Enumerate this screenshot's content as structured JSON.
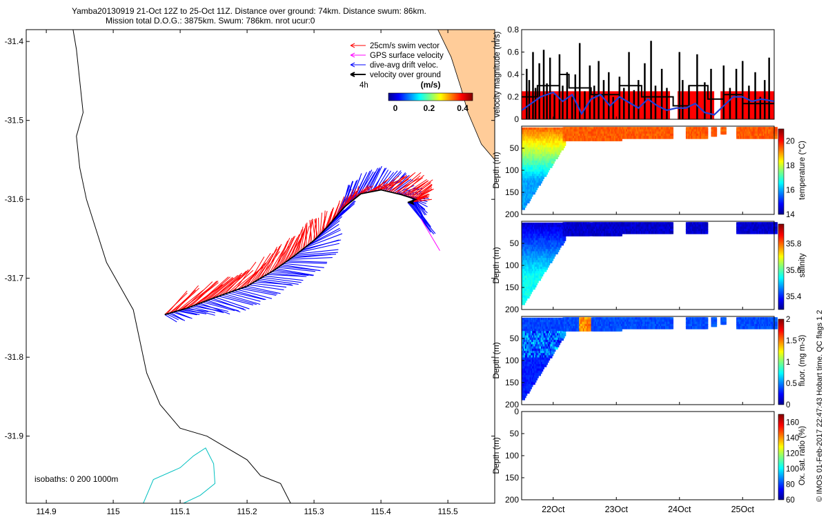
{
  "title": {
    "line1": "Yamba20130919 21-Oct 12Z to 25-Oct 11Z. Distance over ground: 74km. Distance swum: 86km.",
    "line2": "Mission total D.O.G.: 3875km. Swum: 786km. nrot ucur:0"
  },
  "credit": "© IMOS 01-Feb-2017 22:47:43 Hobart time. QC flags 1  2",
  "colors": {
    "swim": "#ff0000",
    "gps": "#ff00ff",
    "drift": "#0000ff",
    "ground": "#000000",
    "coast": "#000000",
    "isobath": "#00c0c0",
    "land": "#ffcc99",
    "vbar": "#ff0000",
    "vline": "#1f3fd8"
  },
  "chart_data": [
    {
      "type": "map",
      "name": "glider-track-map",
      "xlim": [
        114.87,
        115.57
      ],
      "ylim": [
        -31.985,
        -31.385
      ],
      "xticks": [
        "114.9",
        "115",
        "115.1",
        "115.2",
        "115.3",
        "115.4",
        "115.5"
      ],
      "yticks": [
        "-31.4",
        "-31.5",
        "-31.6",
        "-31.7",
        "-31.8",
        "-31.9"
      ],
      "legend": {
        "items": [
          "25cm/s swim vector",
          "GPS surface velocity",
          "dive-avg drift veloc.",
          "velocity over ground"
        ],
        "time_marker": "4h"
      },
      "colorbar": {
        "label": "(m/s)",
        "ticks": [
          "0",
          "0.2",
          "0.4"
        ],
        "range": [
          0,
          0.5
        ]
      },
      "isobaths_label": "isobaths: 0   200  1000m",
      "coastline": [
        [
          114.94,
          -31.385
        ],
        [
          114.945,
          -31.41
        ],
        [
          114.95,
          -31.45
        ],
        [
          114.955,
          -31.49
        ],
        [
          114.945,
          -31.52
        ],
        [
          114.95,
          -31.56
        ],
        [
          114.96,
          -31.6
        ],
        [
          114.975,
          -31.64
        ],
        [
          114.99,
          -31.68
        ],
        [
          115.01,
          -31.71
        ],
        [
          115.03,
          -31.74
        ],
        [
          115.04,
          -31.78
        ],
        [
          115.05,
          -31.82
        ],
        [
          115.07,
          -31.86
        ],
        [
          115.1,
          -31.89
        ],
        [
          115.14,
          -31.9
        ],
        [
          115.2,
          -31.93
        ],
        [
          115.22,
          -31.95
        ],
        [
          115.25,
          -31.96
        ],
        [
          115.265,
          -31.985
        ]
      ],
      "isobath_0": [
        [
          115.045,
          -31.985
        ],
        [
          115.06,
          -31.955
        ],
        [
          115.1,
          -31.94
        ],
        [
          115.12,
          -31.925
        ],
        [
          115.138,
          -31.915
        ],
        [
          115.15,
          -31.935
        ],
        [
          115.152,
          -31.96
        ],
        [
          115.13,
          -31.975
        ],
        [
          115.105,
          -31.985
        ]
      ],
      "land_polygon": [
        [
          115.485,
          -31.385
        ],
        [
          115.57,
          -31.385
        ],
        [
          115.57,
          -31.55
        ],
        [
          115.55,
          -31.53
        ],
        [
          115.53,
          -31.49
        ],
        [
          115.52,
          -31.46
        ],
        [
          115.505,
          -31.42
        ]
      ],
      "track": [
        [
          115.077,
          -31.746
        ],
        [
          115.11,
          -31.738
        ],
        [
          115.15,
          -31.725
        ],
        [
          115.2,
          -31.71
        ],
        [
          115.24,
          -31.69
        ],
        [
          115.27,
          -31.672
        ],
        [
          115.3,
          -31.652
        ],
        [
          115.32,
          -31.635
        ],
        [
          115.345,
          -31.61
        ],
        [
          115.37,
          -31.593
        ],
        [
          115.4,
          -31.588
        ],
        [
          115.43,
          -31.594
        ],
        [
          115.452,
          -31.6
        ],
        [
          115.44,
          -31.604
        ]
      ],
      "drift_endpoints": [
        [
          115.095,
          -31.755
        ],
        [
          115.14,
          -31.745
        ],
        [
          115.19,
          -31.742
        ],
        [
          115.23,
          -31.728
        ],
        [
          115.275,
          -31.705
        ],
        [
          115.31,
          -31.69
        ],
        [
          115.34,
          -31.66
        ],
        [
          115.34,
          -31.62
        ],
        [
          115.365,
          -31.6
        ],
        [
          115.35,
          -31.58
        ],
        [
          115.38,
          -31.565
        ],
        [
          115.405,
          -31.56
        ],
        [
          115.44,
          -31.568
        ],
        [
          115.47,
          -31.6
        ],
        [
          115.465,
          -31.625
        ],
        [
          115.48,
          -31.645
        ]
      ],
      "swim_endpoints": [
        [
          115.11,
          -31.718
        ],
        [
          115.16,
          -31.705
        ],
        [
          115.2,
          -31.695
        ],
        [
          115.24,
          -31.668
        ],
        [
          115.275,
          -31.648
        ],
        [
          115.29,
          -31.632
        ],
        [
          115.31,
          -31.62
        ],
        [
          115.35,
          -31.598
        ],
        [
          115.37,
          -31.588
        ],
        [
          115.42,
          -31.575
        ],
        [
          115.46,
          -31.568
        ],
        [
          115.48,
          -31.585
        ],
        [
          115.47,
          -31.6
        ]
      ],
      "gps_tip": [
        115.488,
        -31.665
      ]
    },
    {
      "type": "bar",
      "name": "velocity-magnitude",
      "ylabel": "velocity magnitude (m/s)",
      "ylim": [
        0,
        0.8
      ],
      "yticks": [
        "0",
        "0.2",
        "0.4",
        "0.6",
        "0.8"
      ],
      "xlim": [
        21.5,
        25.5
      ],
      "segments": [
        [
          21.5,
          23.85
        ],
        [
          23.97,
          24.55
        ],
        [
          24.65,
          25.5
        ]
      ],
      "bar_height": 0.25,
      "spike_times": [
        21.58,
        21.62,
        21.68,
        21.72,
        21.78,
        21.85,
        21.9,
        21.95,
        22.02,
        22.1,
        22.15,
        22.22,
        22.3,
        22.35,
        22.42,
        22.5,
        22.58,
        22.65,
        22.72,
        22.8,
        22.88,
        22.95,
        23.05,
        23.12,
        23.2,
        23.28,
        23.35,
        23.45,
        23.55,
        23.62,
        23.72,
        23.8,
        24.0,
        24.05,
        24.15,
        24.28,
        24.4,
        24.5,
        24.7,
        24.8,
        24.9,
        25.0,
        25.1,
        25.2,
        25.28,
        25.35,
        25.42
      ],
      "spike_values": [
        0.45,
        0.35,
        0.6,
        0.28,
        0.5,
        0.62,
        0.32,
        0.55,
        0.22,
        0.58,
        0.3,
        0.42,
        0.2,
        0.4,
        0.68,
        0.25,
        0.48,
        0.3,
        0.52,
        0.35,
        0.42,
        0.2,
        0.38,
        0.28,
        0.6,
        0.26,
        0.35,
        0.5,
        0.7,
        0.3,
        0.45,
        0.28,
        0.6,
        0.35,
        0.3,
        0.58,
        0.33,
        0.45,
        0.48,
        0.28,
        0.45,
        0.52,
        0.3,
        0.42,
        0.2,
        0.35,
        0.55
      ],
      "ground_step_x": [
        21.5,
        21.75,
        21.75,
        22.1,
        22.1,
        22.25,
        22.25,
        22.6,
        22.6,
        23.05,
        23.05,
        23.4,
        23.4,
        23.9,
        23.9,
        24.15,
        24.15,
        24.45,
        24.45,
        24.7,
        24.7,
        25.0,
        25.0,
        25.5
      ],
      "ground_step_y": [
        0.2,
        0.2,
        0.3,
        0.3,
        0.4,
        0.4,
        0.28,
        0.28,
        0.22,
        0.22,
        0.3,
        0.3,
        0.2,
        0.2,
        0.12,
        0.12,
        0.3,
        0.3,
        0.18,
        0.18,
        0.22,
        0.22,
        0.14,
        0.14
      ],
      "mean_x": [
        21.5,
        21.65,
        21.8,
        22.0,
        22.15,
        22.3,
        22.45,
        22.6,
        22.75,
        22.9,
        23.05,
        23.2,
        23.35,
        23.5,
        23.65,
        23.8,
        23.95,
        24.1,
        24.25,
        24.4,
        24.55,
        24.7,
        24.85,
        25.0,
        25.15,
        25.3,
        25.5
      ],
      "mean_y": [
        0.08,
        0.14,
        0.2,
        0.24,
        0.16,
        0.22,
        0.05,
        0.18,
        0.22,
        0.12,
        0.2,
        0.15,
        0.1,
        0.18,
        0.12,
        0.08,
        0.1,
        0.1,
        0.14,
        0.06,
        0.04,
        0.12,
        0.2,
        0.2,
        0.16,
        0.18,
        0.16
      ]
    },
    {
      "type": "heatmap",
      "name": "temperature-section",
      "ylabel": "Depth (m)",
      "ylim": [
        0,
        200
      ],
      "yticks": [
        "50",
        "100",
        "150",
        "200"
      ],
      "colorbar": {
        "label": "temperature (°C)",
        "range": [
          14,
          21
        ],
        "ticks": [
          "14",
          "16",
          "18",
          "20"
        ]
      },
      "xlim": [
        21.5,
        25.5
      ],
      "deep_section": {
        "x": [
          21.5,
          22.15
        ],
        "depth_start": 185,
        "depth_end": 40
      },
      "shallow_blocks": [
        [
          22.15,
          22.55,
          30
        ],
        [
          22.6,
          23.05,
          28
        ],
        [
          23.05,
          23.85,
          26
        ],
        [
          24.1,
          24.4,
          24
        ],
        [
          24.5,
          24.55,
          20
        ],
        [
          24.65,
          24.7,
          15
        ],
        [
          24.9,
          25.5,
          25
        ]
      ],
      "surface_value": 19.5,
      "deep_value": 16.0
    },
    {
      "type": "heatmap",
      "name": "salinity-section",
      "ylabel": "Depth (m)",
      "ylim": [
        0,
        200
      ],
      "yticks": [
        "50",
        "100",
        "150",
        "200"
      ],
      "colorbar": {
        "label": "salinity",
        "range": [
          35.3,
          35.95
        ],
        "ticks": [
          "35.4",
          "35.6",
          "35.8"
        ]
      },
      "xlim": [
        21.5,
        25.5
      ],
      "deep_section": {
        "x": [
          21.5,
          22.15
        ],
        "depth_start": 185,
        "depth_end": 40
      },
      "shallow_blocks": [
        [
          22.15,
          22.55,
          30
        ],
        [
          22.6,
          23.05,
          28
        ],
        [
          23.05,
          23.85,
          26
        ],
        [
          24.1,
          24.4,
          24
        ],
        [
          24.9,
          25.5,
          25
        ]
      ],
      "surface_value": 35.35,
      "deep_value": 35.55
    },
    {
      "type": "heatmap",
      "name": "fluorescence-section",
      "ylabel": "Depth (m)",
      "ylim": [
        0,
        200
      ],
      "yticks": [
        "50",
        "100",
        "150",
        "200"
      ],
      "colorbar": {
        "label": "fluor. (mg m-3)",
        "range": [
          0,
          2
        ],
        "ticks": [
          "0",
          "0.5",
          "1",
          "1.5",
          "2"
        ]
      },
      "xlim": [
        21.5,
        25.5
      ],
      "deep_section": {
        "x": [
          21.5,
          22.15
        ],
        "depth_start": 185,
        "depth_end": 40
      },
      "shallow_blocks": [
        [
          22.15,
          22.55,
          30
        ],
        [
          22.6,
          23.05,
          28
        ],
        [
          23.05,
          23.85,
          26
        ],
        [
          24.1,
          24.4,
          24
        ],
        [
          24.5,
          24.55,
          20
        ],
        [
          24.65,
          24.7,
          15
        ],
        [
          24.9,
          25.5,
          25
        ]
      ],
      "bloom_x": [
        22.4,
        22.55
      ],
      "surface_value": 0.4,
      "deep_value": 0.3
    },
    {
      "type": "heatmap",
      "name": "oxygen-saturation-section",
      "ylabel": "Depth (m)",
      "ylim": [
        0,
        200
      ],
      "yticks": [
        "0",
        "50",
        "100",
        "150",
        "200"
      ],
      "colorbar": {
        "label": "Ox. sat. ratio (%)",
        "range": [
          60,
          170
        ],
        "ticks": [
          "60",
          "80",
          "100",
          "120",
          "140",
          "160"
        ]
      },
      "xlim": [
        21.5,
        25.5
      ],
      "xticks": [
        "22Oct",
        "23Oct",
        "24Oct",
        "25Oct"
      ],
      "xtick_values": [
        22,
        23,
        24,
        25
      ]
    }
  ]
}
